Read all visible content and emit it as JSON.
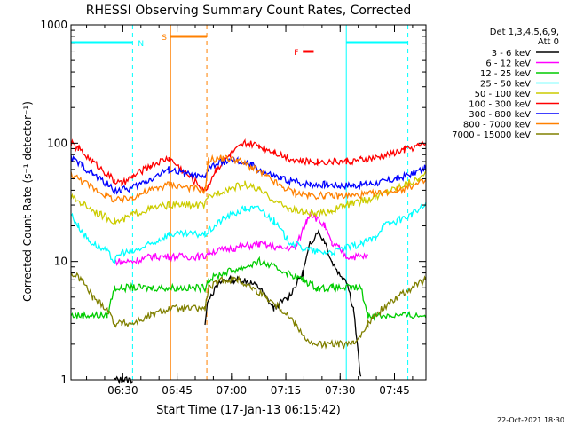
{
  "chart_data": {
    "type": "line",
    "title": "RHESSI Observing Summary Count Rates, Corrected",
    "xlabel": "Start Time (17-Jan-13 06:15:42)",
    "ylabel": "Corrected Count Rate (s⁻¹ detector⁻¹)",
    "yscale": "log",
    "ylim": [
      1,
      1000
    ],
    "xlim_minutes": [
      0,
      98
    ],
    "x_tick_labels": [
      "06:30",
      "06:45",
      "07:00",
      "07:15",
      "07:30",
      "07:45"
    ],
    "x_tick_minutes": [
      14.3,
      29.3,
      44.3,
      59.3,
      74.3,
      89.3
    ],
    "y_tick_labels": [
      "1",
      "10",
      "100",
      "1000"
    ],
    "y_tick_values": [
      1,
      10,
      100,
      1000
    ],
    "legend_header": [
      "Det 1,3,4,5,6,9,",
      "Att 0"
    ],
    "legend_position": "right",
    "flag_labels": {
      "N": "N",
      "S": "S",
      "F": "F"
    },
    "flags": {
      "night": [
        [
          0,
          17
        ],
        [
          76,
          93
        ]
      ],
      "saa": [
        [
          27.5,
          37.5
        ]
      ],
      "flare": [
        [
          64,
          67
        ]
      ]
    },
    "data_gap_minutes": [
      27.5,
      37.5
    ],
    "series": [
      {
        "name": "3 - 6 keV",
        "color": "#000000",
        "t": [
          0,
          10,
          12,
          14,
          17,
          27,
          37,
          38,
          42,
          48,
          52,
          56,
          60,
          64,
          66,
          68,
          70,
          72,
          74,
          76,
          78,
          80,
          90,
          98
        ],
        "v": [
          null,
          null,
          1,
          1,
          1,
          null,
          3,
          5,
          7,
          7,
          6,
          4,
          5,
          8,
          14,
          18,
          15,
          10,
          8,
          7,
          4,
          1,
          null,
          null
        ]
      },
      {
        "name": "6 - 12 keV",
        "color": "#ff00ff",
        "t": [
          12,
          14,
          17,
          22,
          27,
          37,
          38,
          45,
          52,
          58,
          62,
          65,
          66,
          70,
          72,
          74,
          76,
          80,
          82
        ],
        "v": [
          10,
          10,
          10,
          11,
          11,
          11,
          12,
          13,
          14,
          13,
          13,
          22,
          26,
          20,
          14,
          13,
          11,
          11,
          11
        ]
      },
      {
        "name": "12 - 25 keV",
        "color": "#00cc00",
        "t": [
          0,
          5,
          10,
          12,
          14,
          17,
          22,
          27,
          37,
          38,
          42,
          48,
          52,
          56,
          60,
          64,
          68,
          72,
          76,
          80,
          82,
          98
        ],
        "v": [
          3.5,
          3.5,
          3.5,
          6,
          6,
          6,
          6,
          6,
          6,
          7,
          8,
          9,
          10,
          9,
          8,
          7,
          6,
          6,
          6,
          6,
          3.5,
          3.5
        ]
      },
      {
        "name": "25 - 50 keV",
        "color": "#00ffff",
        "t": [
          0,
          2,
          5,
          10,
          12,
          14,
          17,
          22,
          27,
          37,
          38,
          42,
          48,
          52,
          56,
          60,
          64,
          68,
          72,
          76,
          80,
          84,
          86,
          90,
          94,
          98
        ],
        "v": [
          25,
          20,
          15,
          12,
          10,
          12,
          12,
          14,
          17,
          17,
          18,
          23,
          28,
          28,
          22,
          15,
          13,
          12,
          12,
          13,
          14,
          16,
          20,
          22,
          25,
          30
        ]
      },
      {
        "name": "50 - 100 keV",
        "color": "#cccc00",
        "t": [
          0,
          4,
          8,
          12,
          14,
          17,
          22,
          27,
          37,
          38,
          42,
          48,
          52,
          56,
          60,
          64,
          68,
          72,
          76,
          80,
          84,
          88,
          92,
          96,
          98
        ],
        "v": [
          35,
          30,
          25,
          22,
          22,
          25,
          28,
          30,
          30,
          35,
          40,
          45,
          40,
          33,
          28,
          26,
          25,
          27,
          30,
          32,
          35,
          40,
          45,
          50,
          55
        ]
      },
      {
        "name": "100 - 300 keV",
        "color": "#ff0000",
        "t": [
          0,
          2,
          6,
          10,
          12,
          14,
          17,
          22,
          27,
          37,
          38,
          40,
          44,
          48,
          52,
          56,
          60,
          64,
          68,
          72,
          76,
          80,
          84,
          88,
          92,
          96,
          98
        ],
        "v": [
          100,
          90,
          70,
          55,
          48,
          45,
          52,
          65,
          75,
          40,
          45,
          60,
          80,
          100,
          95,
          85,
          75,
          70,
          70,
          70,
          70,
          72,
          75,
          80,
          88,
          95,
          100
        ]
      },
      {
        "name": "300 - 800 keV",
        "color": "#0000ff",
        "t": [
          0,
          3,
          6,
          10,
          12,
          14,
          17,
          22,
          27,
          37,
          38,
          42,
          46,
          50,
          54,
          58,
          62,
          66,
          70,
          74,
          78,
          82,
          86,
          90,
          94,
          98
        ],
        "v": [
          75,
          65,
          55,
          45,
          40,
          40,
          42,
          50,
          60,
          50,
          62,
          70,
          70,
          65,
          55,
          50,
          47,
          45,
          45,
          44,
          44,
          45,
          47,
          50,
          55,
          62
        ]
      },
      {
        "name": "800 - 7000 keV",
        "color": "#ff8000",
        "t": [
          0,
          3,
          6,
          10,
          12,
          14,
          17,
          22,
          27,
          37,
          38,
          42,
          46,
          50,
          54,
          58,
          62,
          66,
          70,
          74,
          78,
          82,
          86,
          90,
          94,
          98
        ],
        "v": [
          55,
          48,
          42,
          36,
          33,
          33,
          35,
          40,
          45,
          40,
          72,
          75,
          72,
          62,
          52,
          43,
          38,
          36,
          36,
          36,
          36,
          37,
          38,
          40,
          43,
          48
        ]
      },
      {
        "name": "7000 - 15000 keV",
        "color": "#808000",
        "t": [
          0,
          3,
          6,
          10,
          12,
          14,
          17,
          22,
          27,
          37,
          38,
          42,
          46,
          50,
          54,
          58,
          62,
          66,
          70,
          74,
          78,
          82,
          86,
          90,
          94,
          98
        ],
        "v": [
          8,
          7,
          5,
          4,
          3,
          3,
          3,
          3.5,
          4,
          4,
          6,
          7,
          7,
          6,
          5,
          4,
          3,
          2,
          2,
          2,
          2,
          3,
          4,
          5,
          6,
          7
        ]
      }
    ]
  },
  "footer": {
    "date": "22-Oct-2021 18:30"
  }
}
